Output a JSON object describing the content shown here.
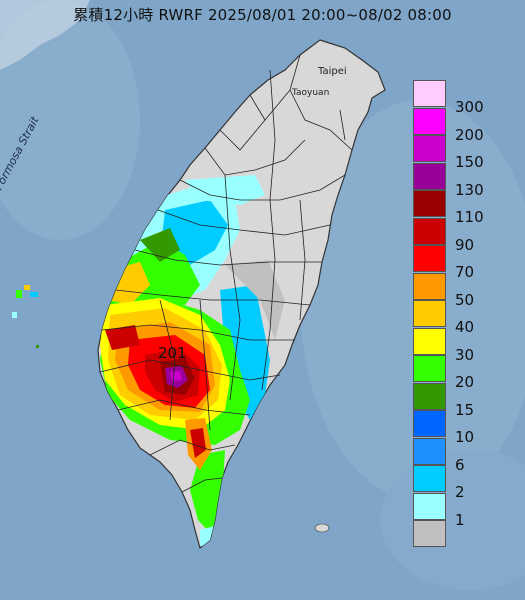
{
  "title": "累積12小時 RWRF 2025/08/01 20:00~08/02 08:00",
  "place_labels": {
    "taipei": "Taipei",
    "taoyuan": "Taoyuan",
    "strait": "Formosa Strait",
    "peak_value": "201"
  },
  "legend": {
    "units": [
      "300",
      "200",
      "150",
      "130",
      "110",
      "90",
      "70",
      "50",
      "40",
      "30",
      "20",
      "15",
      "10",
      "6",
      "2",
      "1"
    ],
    "colors": [
      "#ffccff",
      "#ff00ff",
      "#cc00cc",
      "#990099",
      "#990000",
      "#cc0000",
      "#ff0000",
      "#ff9900",
      "#ffcc00",
      "#ffff00",
      "#33ff00",
      "#339900",
      "#0066ff",
      "#1e90ff",
      "#00ccff",
      "#99ffff",
      "#c0c0c0"
    ]
  },
  "colors": {
    "sea": "#7fa6c8",
    "land_dry": "#d8d8d8"
  }
}
